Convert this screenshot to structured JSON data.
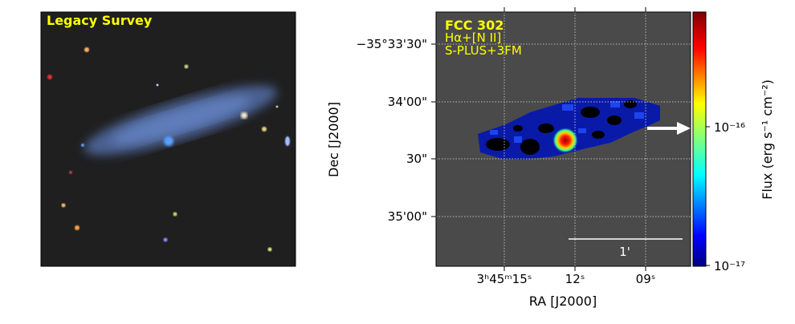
{
  "left_panel": {
    "label": "Legacy Survey"
  },
  "right_panel": {
    "object": "FCC 302",
    "line": "Hα+[N II]",
    "survey": "S-PLUS+3FM",
    "x_label": "RA [J2000]",
    "x_ticks": [
      "3ʰ45ᵐ15ˢ",
      "12ˢ",
      "09ˢ"
    ],
    "y_label": "Dec [J2000]",
    "y_ticks": [
      "−35°33'30\"",
      "34'00\"",
      "30\"",
      "35'00\""
    ],
    "scale_bar": "1'"
  },
  "colorbar": {
    "label": "Flux (erg s⁻¹ cm⁻²)",
    "ticks": [
      "10⁻¹⁶",
      "10⁻¹⁷"
    ]
  }
}
